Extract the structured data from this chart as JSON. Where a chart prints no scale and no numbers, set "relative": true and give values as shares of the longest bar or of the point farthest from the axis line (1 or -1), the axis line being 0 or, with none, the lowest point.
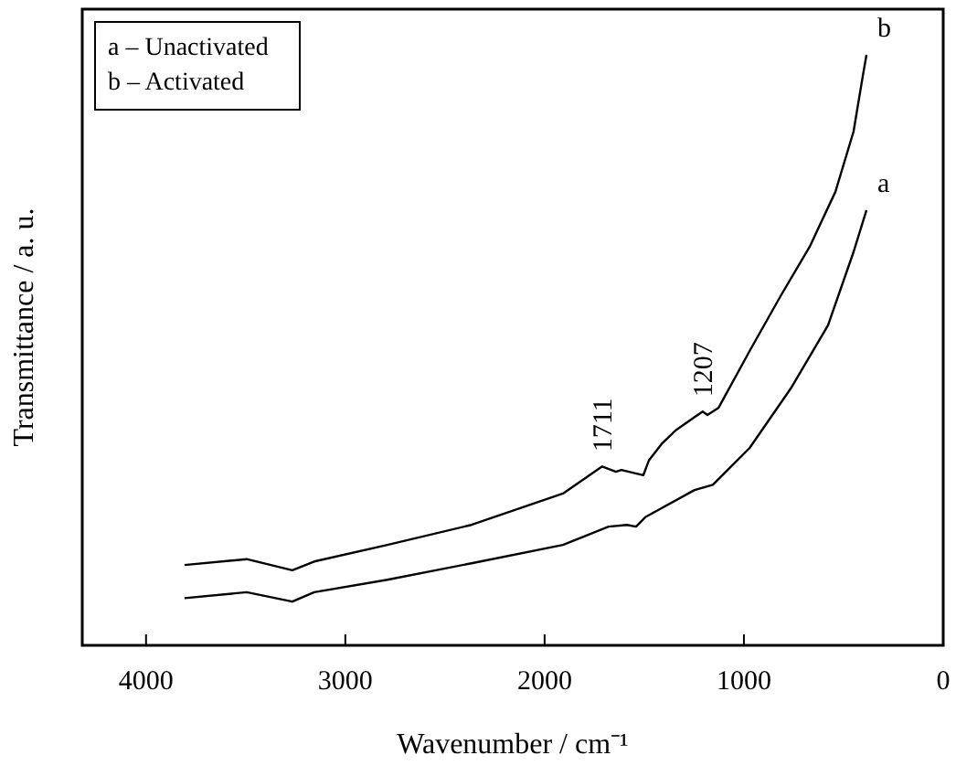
{
  "chart_data": {
    "type": "line",
    "relative": true,
    "xlabel": "Wavenumber / cm⁻¹",
    "ylabel": "Transmittance / a. u.",
    "xlim": [
      4320,
      0
    ],
    "xticks": [
      4000,
      3000,
      2000,
      1000,
      0
    ],
    "grid": false,
    "marker": "none",
    "line_style": "solid",
    "annotations": [
      "a – Unactivated",
      "b – Activated",
      {
        "text": "1711",
        "x": 1711,
        "y": 0.303
      },
      {
        "text": "1207",
        "x": 1207,
        "y": 0.396
      }
    ],
    "series": [
      {
        "name": "a",
        "color": "#000000",
        "x": [
          3807,
          3495,
          3266,
          3156,
          2789,
          2367,
          1908,
          1679,
          1587,
          1541,
          1495,
          1248,
          1156,
          972,
          761,
          578,
          450,
          385
        ],
        "values": [
          0.08,
          0.09,
          0.074,
          0.09,
          0.111,
          0.139,
          0.17,
          0.201,
          0.204,
          0.201,
          0.217,
          0.263,
          0.272,
          0.334,
          0.437,
          0.542,
          0.666,
          0.737
        ]
      },
      {
        "name": "b",
        "color": "#000000",
        "x": [
          3807,
          3495,
          3266,
          3156,
          2789,
          2367,
          1908,
          1711,
          1642,
          1615,
          1505,
          1477,
          1413,
          1339,
          1207,
          1183,
          1128,
          972,
          817,
          670,
          541,
          450,
          404,
          385
        ],
        "values": [
          0.136,
          0.146,
          0.127,
          0.142,
          0.17,
          0.204,
          0.257,
          0.303,
          0.294,
          0.297,
          0.288,
          0.313,
          0.341,
          0.365,
          0.396,
          0.39,
          0.402,
          0.498,
          0.591,
          0.675,
          0.768,
          0.87,
          0.963,
          1
        ]
      }
    ]
  }
}
